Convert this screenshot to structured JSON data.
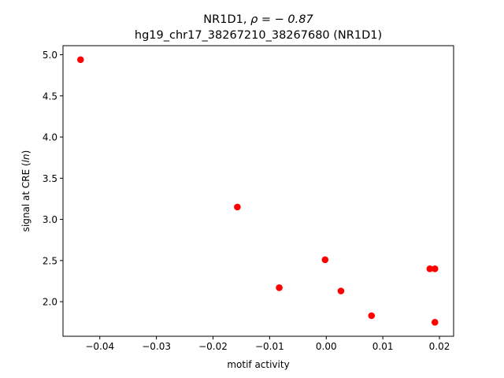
{
  "chart_data": {
    "type": "scatter",
    "title_line1_prefix": "NR1D1, ",
    "title_line1_rho": "ρ = − 0.87",
    "title_line2": "hg19_chr17_38267210_38267680 (NR1D1)",
    "xlabel": "motif activity",
    "ylabel_prefix": "signal at CRE (",
    "ylabel_italic": "ln",
    "ylabel_suffix": ")",
    "xlim": [
      -0.0465,
      0.0225
    ],
    "ylim": [
      1.58,
      5.11
    ],
    "xticks": [
      {
        "value": -0.04,
        "label": "−0.04"
      },
      {
        "value": -0.03,
        "label": "−0.03"
      },
      {
        "value": -0.02,
        "label": "−0.02"
      },
      {
        "value": -0.01,
        "label": "−0.01"
      },
      {
        "value": 0.0,
        "label": "0.00"
      },
      {
        "value": 0.01,
        "label": "0.01"
      },
      {
        "value": 0.02,
        "label": "0.02"
      }
    ],
    "yticks": [
      {
        "value": 2.0,
        "label": "2.0"
      },
      {
        "value": 2.5,
        "label": "2.5"
      },
      {
        "value": 3.0,
        "label": "3.0"
      },
      {
        "value": 3.5,
        "label": "3.5"
      },
      {
        "value": 4.0,
        "label": "4.0"
      },
      {
        "value": 4.5,
        "label": "4.5"
      },
      {
        "value": 5.0,
        "label": "5.0"
      }
    ],
    "point_color": "#ff0000",
    "points": [
      {
        "x": -0.0434,
        "y": 4.94
      },
      {
        "x": -0.0157,
        "y": 3.15
      },
      {
        "x": -0.0083,
        "y": 2.17
      },
      {
        "x": -0.0002,
        "y": 2.51
      },
      {
        "x": 0.0026,
        "y": 2.13
      },
      {
        "x": 0.008,
        "y": 1.83
      },
      {
        "x": 0.0183,
        "y": 2.4
      },
      {
        "x": 0.0192,
        "y": 2.4
      },
      {
        "x": 0.0192,
        "y": 1.75
      }
    ],
    "grid": false,
    "legend": "none"
  }
}
